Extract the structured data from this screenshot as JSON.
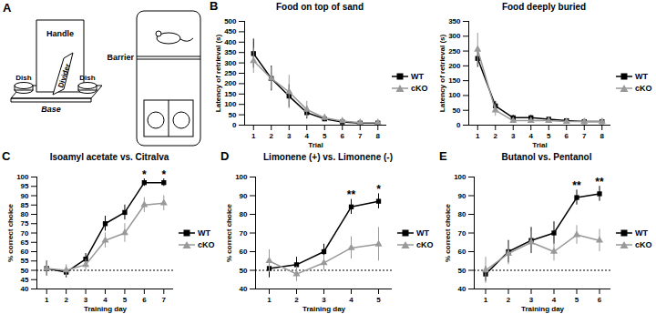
{
  "chart_data": [
    {
      "type": "diagram",
      "panel": "A",
      "labels": {
        "handle": "Handle",
        "divider": "Divider",
        "base": "Base",
        "dish_left": "Dish",
        "dish_right": "Dish",
        "barrier": "Barrier"
      }
    },
    {
      "type": "line",
      "panel": "B",
      "title": "Food on top of sand",
      "x_label": "Trial",
      "y_label": "Latency of retrieval (s)",
      "x": [
        1,
        2,
        3,
        4,
        5,
        6,
        7,
        8
      ],
      "xlim": [
        0.5,
        8.5
      ],
      "xticks": [
        1,
        2,
        3,
        4,
        5,
        6,
        7,
        8
      ],
      "ylim": [
        0,
        500
      ],
      "yticks": [
        0,
        50,
        100,
        150,
        200,
        250,
        300,
        350,
        400,
        450,
        500
      ],
      "legend": "right",
      "series": [
        {
          "name": "WT",
          "color": "#000000",
          "marker": "square",
          "line_style": "solid",
          "values": [
            345,
            225,
            140,
            60,
            30,
            15,
            10,
            10
          ],
          "errors": [
            70,
            60,
            55,
            30,
            10,
            5,
            4,
            4
          ]
        },
        {
          "name": "cKO",
          "color": "#999999",
          "marker": "triangle",
          "line_style": "solid",
          "values": [
            310,
            225,
            160,
            75,
            35,
            20,
            12,
            12
          ],
          "errors": [
            60,
            55,
            80,
            40,
            15,
            8,
            5,
            5
          ]
        }
      ]
    },
    {
      "type": "line",
      "title": "Food deeply buried",
      "x_label": "Trial",
      "y_label": "Latency of retrieval (s)",
      "x": [
        1,
        2,
        3,
        4,
        5,
        6,
        7,
        8
      ],
      "xlim": [
        0.5,
        8.5
      ],
      "xticks": [
        1,
        2,
        3,
        4,
        5,
        6,
        7,
        8
      ],
      "ylim": [
        0,
        350
      ],
      "yticks": [
        0,
        50,
        100,
        150,
        200,
        250,
        300,
        350
      ],
      "legend": "right",
      "series": [
        {
          "name": "WT",
          "color": "#000000",
          "marker": "square",
          "line_style": "solid",
          "values": [
            225,
            65,
            25,
            25,
            20,
            15,
            12,
            12
          ],
          "errors": [
            30,
            15,
            8,
            8,
            6,
            5,
            4,
            4
          ]
        },
        {
          "name": "cKO",
          "color": "#999999",
          "marker": "triangle",
          "line_style": "solid",
          "values": [
            255,
            50,
            15,
            15,
            15,
            12,
            12,
            12
          ],
          "errors": [
            55,
            20,
            6,
            6,
            5,
            4,
            4,
            4
          ]
        }
      ]
    },
    {
      "type": "line",
      "panel": "C",
      "title": "Isoamyl acetate vs. Citralva",
      "x_label": "Training day",
      "y_label": "% correct choice",
      "x": [
        1,
        2,
        3,
        4,
        5,
        6,
        7
      ],
      "xlim": [
        0.5,
        7.5
      ],
      "xticks": [
        1,
        2,
        3,
        4,
        5,
        6,
        7
      ],
      "ylim": [
        40,
        100
      ],
      "yticks": [
        40,
        45,
        50,
        55,
        60,
        65,
        70,
        75,
        80,
        85,
        90,
        95,
        100
      ],
      "chance_level": 50,
      "legend": "right",
      "annotations": [
        {
          "x": 6,
          "text": "*"
        },
        {
          "x": 7,
          "text": "*"
        }
      ],
      "series": [
        {
          "name": "WT",
          "color": "#000000",
          "marker": "square",
          "line_style": "solid",
          "values": [
            51,
            49,
            56,
            75,
            81,
            97,
            97
          ],
          "errors": [
            4,
            3,
            3,
            4,
            4,
            2,
            2
          ]
        },
        {
          "name": "cKO",
          "color": "#999999",
          "marker": "triangle",
          "line_style": "solid",
          "values": [
            51,
            50,
            53,
            66,
            70,
            85,
            86
          ],
          "errors": [
            4,
            3,
            3,
            4,
            5,
            4,
            4
          ]
        }
      ]
    },
    {
      "type": "line",
      "panel": "D",
      "title": "Limonene (+) vs. Limonene (-)",
      "x_label": "Training day",
      "y_label": "% correct choice",
      "x": [
        1,
        2,
        3,
        4,
        5
      ],
      "xlim": [
        0.5,
        5.5
      ],
      "xticks": [
        1,
        2,
        3,
        4,
        5
      ],
      "ylim": [
        40,
        100
      ],
      "yticks": [
        40,
        50,
        60,
        70,
        80,
        90,
        100
      ],
      "chance_level": 50,
      "legend": "right",
      "annotations": [
        {
          "x": 4,
          "text": "**"
        },
        {
          "x": 5,
          "text": "*"
        }
      ],
      "series": [
        {
          "name": "WT",
          "color": "#000000",
          "marker": "square",
          "line_style": "solid",
          "values": [
            51,
            53,
            60,
            84,
            87
          ],
          "errors": [
            5,
            4,
            4,
            4,
            4
          ]
        },
        {
          "name": "cKO",
          "color": "#999999",
          "marker": "triangle",
          "line_style": "solid",
          "values": [
            55,
            48,
            54,
            62,
            64
          ],
          "errors": [
            6,
            4,
            4,
            6,
            9
          ]
        }
      ]
    },
    {
      "type": "line",
      "panel": "E",
      "title": "Butanol vs. Pentanol",
      "x_label": "Training day",
      "y_label": "% correct choice",
      "x": [
        1,
        2,
        3,
        4,
        5,
        6
      ],
      "xlim": [
        0.5,
        6.5
      ],
      "xticks": [
        1,
        2,
        3,
        4,
        5,
        6
      ],
      "ylim": [
        40,
        100
      ],
      "yticks": [
        40,
        50,
        60,
        70,
        80,
        90,
        100
      ],
      "chance_level": 50,
      "legend": "right",
      "annotations": [
        {
          "x": 5,
          "text": "**"
        },
        {
          "x": 6,
          "text": "**"
        }
      ],
      "series": [
        {
          "name": "WT",
          "color": "#000000",
          "marker": "square",
          "line_style": "solid",
          "values": [
            48,
            60,
            66,
            70,
            89,
            91
          ],
          "errors": [
            4,
            6,
            7,
            6,
            4,
            4
          ]
        },
        {
          "name": "cKO",
          "color": "#999999",
          "marker": "triangle",
          "line_style": "solid",
          "values": [
            50,
            59,
            65,
            60,
            69,
            66
          ],
          "errors": [
            7,
            6,
            6,
            5,
            5,
            6
          ]
        }
      ]
    }
  ]
}
